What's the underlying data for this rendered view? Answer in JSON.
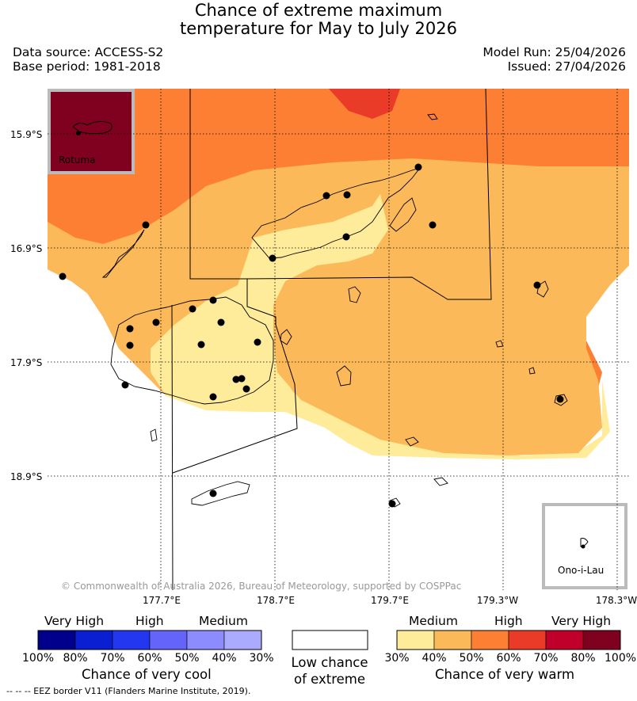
{
  "title_line1": "Chance of extreme maximum",
  "title_line2": "temperature for May to July 2026",
  "data_source": "Data source: ACCESS-S2",
  "base_period": "Base period: 1981-2018",
  "model_run": "Model Run: 25/04/2026",
  "issued": "Issued: 27/04/2026",
  "lat_labels": [
    "15.9°S",
    "16.9°S",
    "17.9°S",
    "18.9°S"
  ],
  "lon_labels": [
    "177.7°E",
    "178.7°E",
    "179.7°E",
    "179.3°W",
    "178.3°W"
  ],
  "insets": {
    "rotuma": "Rotuma",
    "ono_i_lau": "Ono-i-Lau"
  },
  "copyright": "© Commonwealth of Australia 2026, Bureau of Meteorology, supported by COSPPac",
  "legend": {
    "cool": {
      "categories": [
        "Very High",
        "High",
        "Medium"
      ],
      "percents": [
        "100%",
        "80%",
        "70%",
        "60%",
        "50%",
        "40%",
        "30%"
      ],
      "colors": [
        "#00008c",
        "#0a1ed2",
        "#2337f0",
        "#6464fa",
        "#8c8cff",
        "#aaaaff"
      ],
      "title": "Chance of very cool"
    },
    "low": {
      "line1": "Low chance",
      "line2": "of extreme"
    },
    "warm": {
      "categories": [
        "Medium",
        "High",
        "Very High"
      ],
      "percents": [
        "30%",
        "40%",
        "50%",
        "60%",
        "70%",
        "80%",
        "100%"
      ],
      "colors": [
        "#ffec9a",
        "#fbb95a",
        "#fd7f34",
        "#e93b27",
        "#c0002a",
        "#800020"
      ],
      "title": "Chance of very warm"
    }
  },
  "eez_note": "--  --  -- EEZ border V11 (Flanders Marine Institute, 2019)."
}
